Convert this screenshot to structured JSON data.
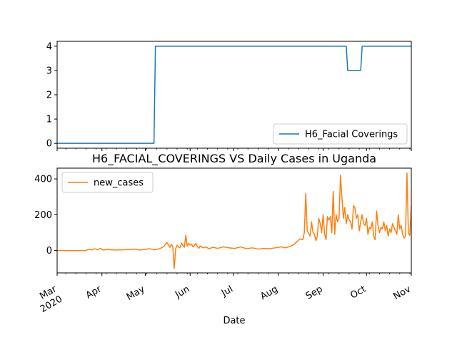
{
  "chart_data": [
    {
      "type": "line",
      "title": "",
      "xlabel": "",
      "ylabel": "",
      "x_range": [
        "2020-03-01",
        "2020-11-01"
      ],
      "ylim": [
        -0.2,
        4.2
      ],
      "yticks": [
        0,
        1,
        2,
        3,
        4
      ],
      "ytick_labels": [
        "0",
        "1",
        "2",
        "3",
        "4"
      ],
      "grid": false,
      "legend_placement": "lower right",
      "series": [
        {
          "name": "H6_Facial Coverings",
          "color": "#1f77b4",
          "x": [
            "2020-03-01",
            "2020-05-07",
            "2020-05-08",
            "2020-09-17",
            "2020-09-18",
            "2020-09-27",
            "2020-09-28",
            "2020-11-01"
          ],
          "values": [
            0,
            0,
            4,
            4,
            3,
            3,
            4,
            4
          ]
        }
      ]
    },
    {
      "type": "line",
      "title": "H6_FACIAL_COVERINGS VS Daily Cases in Uganda",
      "xlabel": "Date",
      "ylabel": "",
      "x_range": [
        "2020-03-01",
        "2020-11-01"
      ],
      "ylim": [
        -125,
        460
      ],
      "yticks": [
        0,
        200,
        400
      ],
      "ytick_labels": [
        "0",
        "200",
        "400"
      ],
      "xtick_labels": [
        {
          "date": "2020-03-01",
          "label": "Mar",
          "sub": "2020"
        },
        {
          "date": "2020-04-01",
          "label": "Apr",
          "sub": ""
        },
        {
          "date": "2020-05-01",
          "label": "May",
          "sub": ""
        },
        {
          "date": "2020-06-01",
          "label": "Jun",
          "sub": ""
        },
        {
          "date": "2020-07-01",
          "label": "Jul",
          "sub": ""
        },
        {
          "date": "2020-08-01",
          "label": "Aug",
          "sub": ""
        },
        {
          "date": "2020-09-01",
          "label": "Sep",
          "sub": ""
        },
        {
          "date": "2020-10-01",
          "label": "Oct",
          "sub": ""
        },
        {
          "date": "2020-11-01",
          "label": "Nov",
          "sub": ""
        }
      ],
      "grid": false,
      "legend_placement": "upper left",
      "series": [
        {
          "name": "new_cases",
          "color": "#ff7f0e",
          "x": [
            "2020-03-01",
            "2020-03-21",
            "2020-03-23",
            "2020-03-25",
            "2020-03-27",
            "2020-03-29",
            "2020-03-31",
            "2020-04-02",
            "2020-04-04",
            "2020-04-06",
            "2020-04-10",
            "2020-04-15",
            "2020-04-20",
            "2020-04-24",
            "2020-04-27",
            "2020-04-30",
            "2020-05-04",
            "2020-05-07",
            "2020-05-10",
            "2020-05-12",
            "2020-05-14",
            "2020-05-16",
            "2020-05-18",
            "2020-05-19",
            "2020-05-20",
            "2020-05-21",
            "2020-05-22",
            "2020-05-23",
            "2020-05-24",
            "2020-05-25",
            "2020-05-26",
            "2020-05-27",
            "2020-05-28",
            "2020-05-29",
            "2020-05-30",
            "2020-05-31",
            "2020-06-01",
            "2020-06-02",
            "2020-06-03",
            "2020-06-04",
            "2020-06-05",
            "2020-06-06",
            "2020-06-07",
            "2020-06-08",
            "2020-06-10",
            "2020-06-12",
            "2020-06-14",
            "2020-06-17",
            "2020-06-20",
            "2020-06-24",
            "2020-06-28",
            "2020-07-02",
            "2020-07-06",
            "2020-07-10",
            "2020-07-14",
            "2020-07-18",
            "2020-07-22",
            "2020-07-26",
            "2020-07-30",
            "2020-08-03",
            "2020-08-06",
            "2020-08-09",
            "2020-08-12",
            "2020-08-14",
            "2020-08-16",
            "2020-08-18",
            "2020-08-19",
            "2020-08-20",
            "2020-08-21",
            "2020-08-22",
            "2020-08-23",
            "2020-08-24",
            "2020-08-25",
            "2020-08-26",
            "2020-08-27",
            "2020-08-28",
            "2020-08-29",
            "2020-08-30",
            "2020-08-31",
            "2020-09-01",
            "2020-09-02",
            "2020-09-03",
            "2020-09-04",
            "2020-09-05",
            "2020-09-06",
            "2020-09-07",
            "2020-09-08",
            "2020-09-09",
            "2020-09-10",
            "2020-09-11",
            "2020-09-12",
            "2020-09-13",
            "2020-09-14",
            "2020-09-15",
            "2020-09-16",
            "2020-09-17",
            "2020-09-18",
            "2020-09-19",
            "2020-09-20",
            "2020-09-21",
            "2020-09-22",
            "2020-09-23",
            "2020-09-24",
            "2020-09-25",
            "2020-09-26",
            "2020-09-27",
            "2020-09-28",
            "2020-09-29",
            "2020-09-30",
            "2020-10-01",
            "2020-10-02",
            "2020-10-03",
            "2020-10-04",
            "2020-10-05",
            "2020-10-06",
            "2020-10-07",
            "2020-10-08",
            "2020-10-09",
            "2020-10-10",
            "2020-10-11",
            "2020-10-12",
            "2020-10-13",
            "2020-10-14",
            "2020-10-15",
            "2020-10-16",
            "2020-10-17",
            "2020-10-18",
            "2020-10-19",
            "2020-10-20",
            "2020-10-21",
            "2020-10-22",
            "2020-10-23",
            "2020-10-24",
            "2020-10-25",
            "2020-10-26",
            "2020-10-27",
            "2020-10-28",
            "2020-10-29",
            "2020-10-30",
            "2020-10-31",
            "2020-11-01"
          ],
          "values": [
            0,
            0,
            8,
            3,
            10,
            4,
            12,
            2,
            6,
            5,
            3,
            4,
            6,
            8,
            3,
            6,
            10,
            4,
            8,
            14,
            25,
            45,
            18,
            35,
            22,
            -100,
            10,
            30,
            20,
            15,
            42,
            28,
            18,
            85,
            25,
            40,
            30,
            35,
            20,
            28,
            40,
            22,
            12,
            25,
            15,
            20,
            10,
            18,
            12,
            20,
            15,
            12,
            20,
            10,
            15,
            8,
            12,
            10,
            15,
            20,
            15,
            22,
            35,
            50,
            65,
            60,
            100,
            318,
            110,
            95,
            80,
            160,
            100,
            90,
            55,
            80,
            180,
            150,
            100,
            200,
            95,
            60,
            190,
            170,
            190,
            100,
            330,
            90,
            200,
            160,
            180,
            420,
            300,
            180,
            240,
            150,
            200,
            170,
            160,
            120,
            250,
            240,
            180,
            200,
            110,
            160,
            200,
            150,
            140,
            180,
            90,
            130,
            120,
            160,
            80,
            60,
            220,
            140,
            100,
            130,
            120,
            160,
            110,
            140,
            80,
            120,
            100,
            150,
            130,
            110,
            90,
            200,
            120,
            140,
            90,
            70,
            80,
            432,
            95,
            85,
            250
          ]
        }
      ]
    }
  ]
}
